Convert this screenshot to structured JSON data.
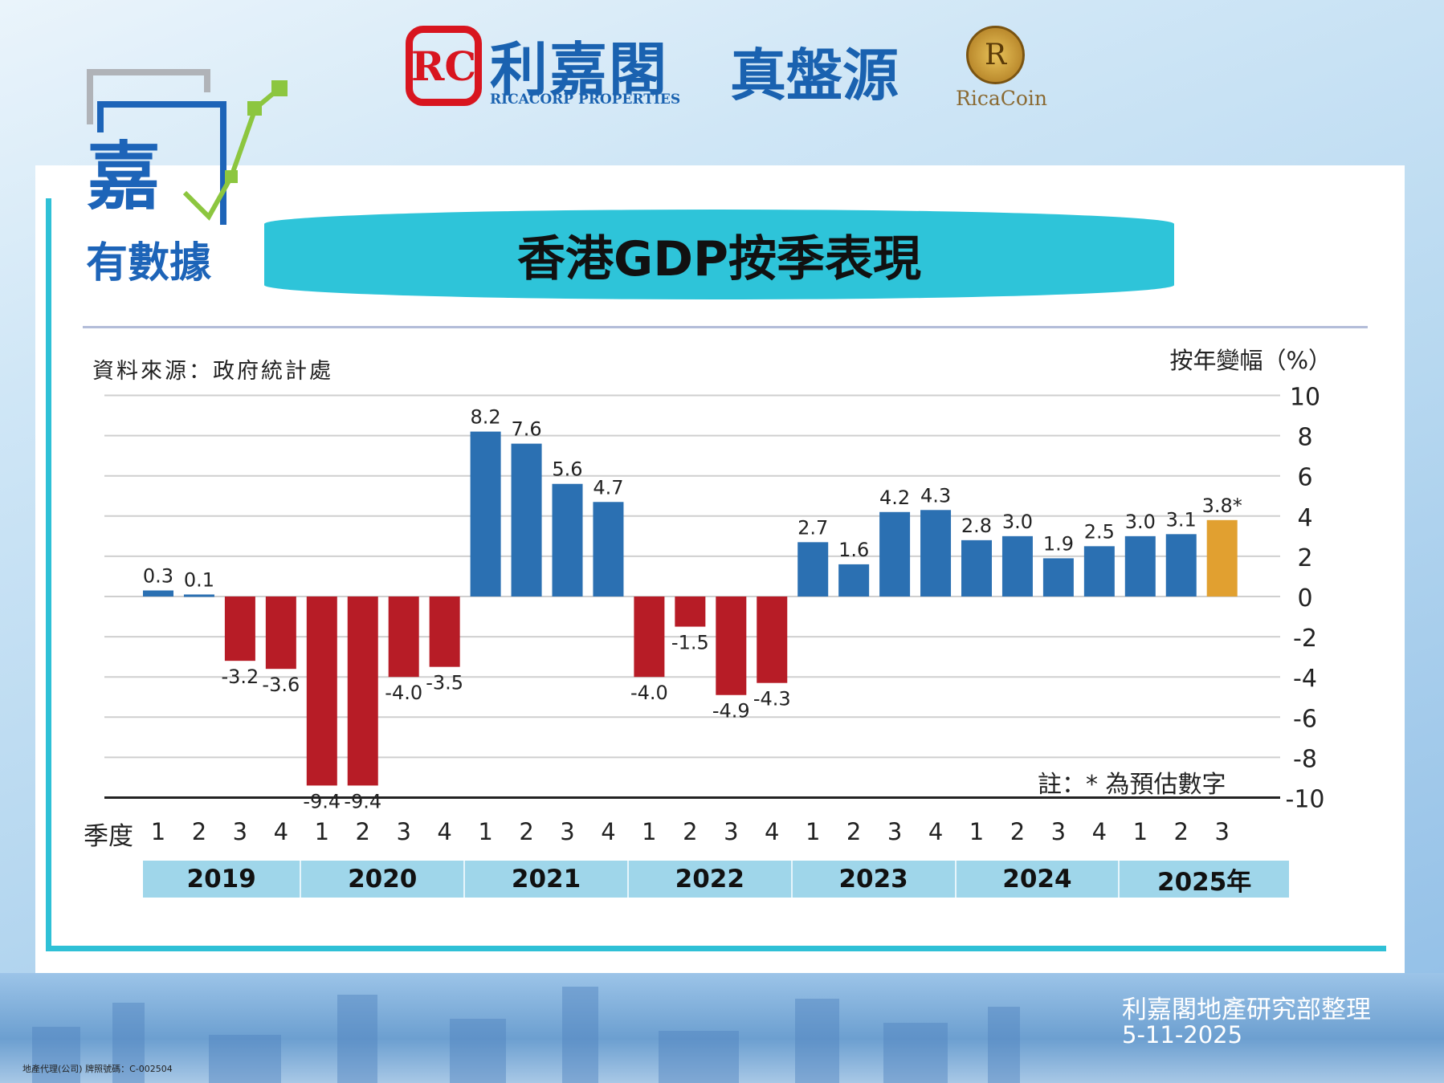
{
  "header": {
    "brand": "利嘉閣",
    "brand_en": "RICACORP PROPERTIES",
    "brand_mark": "RC",
    "sub_brand": "真盤源",
    "coin_mark": "R",
    "coin_name": "RicaCoin",
    "side_logo_top": "嘉",
    "side_logo_bottom": "有數據"
  },
  "title": "香港GDP按季表現",
  "source": "資料來源：政府統計處",
  "note": "註：* 為預估數字",
  "footer": {
    "credit": "利嘉閣地產研究部整理",
    "date": "5-11-2025",
    "license": "地產代理(公司) 牌照號碼：C-002504"
  },
  "colors": {
    "positive": "#2b70b2",
    "negative": "#b71c26",
    "estimate": "#e1a030",
    "title_bg": "#2ec4d9",
    "year_band": "#9fd6ea"
  },
  "chart_data": {
    "type": "bar",
    "ylabel": "按年變幅（%）",
    "ylim": [
      -10,
      10
    ],
    "yticks": [
      10,
      8,
      6,
      4,
      2,
      0,
      -2,
      -4,
      -6,
      -8,
      -10
    ],
    "grid": true,
    "quarter_label": "季度",
    "quarters": [
      "1",
      "2",
      "3",
      "4",
      "1",
      "2",
      "3",
      "4",
      "1",
      "2",
      "3",
      "4",
      "1",
      "2",
      "3",
      "4",
      "1",
      "2",
      "3",
      "4",
      "1",
      "2",
      "3",
      "4",
      "1",
      "2",
      "3"
    ],
    "years": [
      {
        "label": "2019",
        "n": 4
      },
      {
        "label": "2020",
        "n": 4
      },
      {
        "label": "2021",
        "n": 4
      },
      {
        "label": "2022",
        "n": 4
      },
      {
        "label": "2023",
        "n": 4
      },
      {
        "label": "2024",
        "n": 4
      },
      {
        "label": "2025年",
        "n": 3
      }
    ],
    "values": [
      0.3,
      0.1,
      -3.2,
      -3.6,
      -9.4,
      -9.4,
      -4.0,
      -3.5,
      8.2,
      7.6,
      5.6,
      4.7,
      -4.0,
      -1.5,
      -4.9,
      -4.3,
      2.7,
      1.6,
      4.2,
      4.3,
      2.8,
      3.0,
      1.9,
      2.5,
      3.0,
      3.1,
      3.8
    ],
    "labels": [
      "0.3",
      "0.1",
      "-3.2",
      "-3.6",
      "-9.4",
      "-9.4",
      "-4.0",
      "-3.5",
      "8.2",
      "7.6",
      "5.6",
      "4.7",
      "-4.0",
      "-1.5",
      "-4.9",
      "-4.3",
      "2.7",
      "1.6",
      "4.2",
      "4.3",
      "2.8",
      "3.0",
      "1.9",
      "2.5",
      "3.0",
      "3.1",
      "3.8*"
    ],
    "estimate_index": [
      26
    ]
  }
}
